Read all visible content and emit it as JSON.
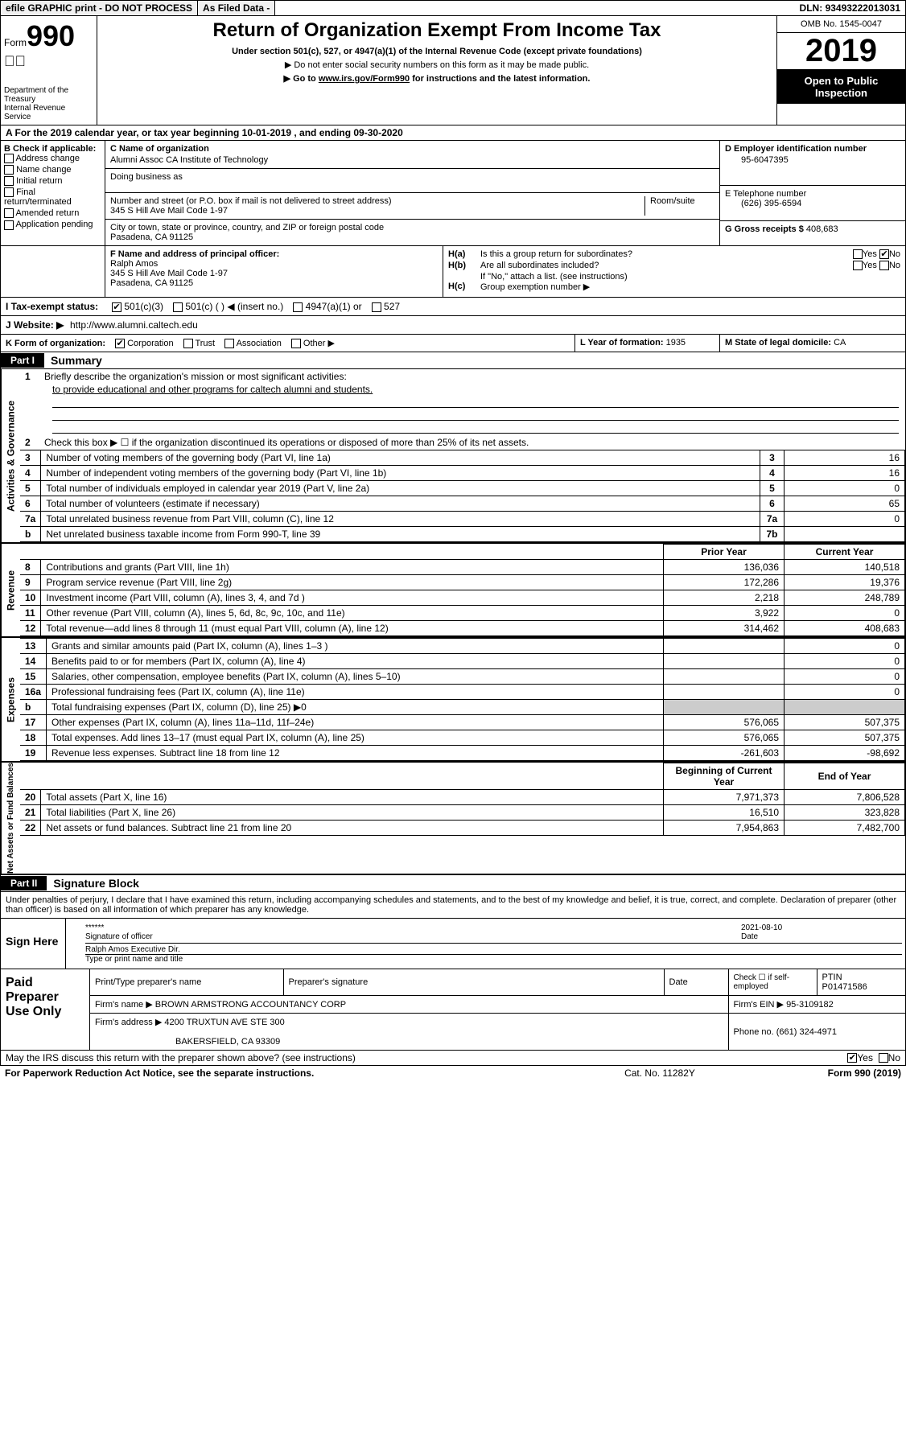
{
  "header_bar": {
    "efile": "efile GRAPHIC print - DO NOT PROCESS",
    "as_filed": "As Filed Data -",
    "dln_label": "DLN:",
    "dln": "93493222013031"
  },
  "form": {
    "form_label": "Form",
    "form_num": "990",
    "dept": "Department of the Treasury\nInternal Revenue Service",
    "title": "Return of Organization Exempt From Income Tax",
    "subtitle": "Under section 501(c), 527, or 4947(a)(1) of the Internal Revenue Code (except private foundations)",
    "note1": "▶ Do not enter social security numbers on this form as it may be made public.",
    "note2_pre": "▶ Go to ",
    "note2_link": "www.irs.gov/Form990",
    "note2_post": " for instructions and the latest information.",
    "omb": "OMB No. 1545-0047",
    "year": "2019",
    "open": "Open to Public Inspection"
  },
  "line_a": "A   For the 2019 calendar year, or tax year beginning 10-01-2019    , and ending 09-30-2020",
  "box_b": {
    "label": "B Check if applicable:",
    "opts": [
      "Address change",
      "Name change",
      "Initial return",
      "Final return/terminated",
      "Amended return",
      "Application pending"
    ]
  },
  "box_c": {
    "label": "C Name of organization",
    "name": "Alumni Assoc CA Institute of Technology",
    "dba_label": "Doing business as",
    "addr_label": "Number and street (or P.O. box if mail is not delivered to street address)",
    "room_label": "Room/suite",
    "addr": "345 S Hill Ave Mail Code 1-97",
    "city_label": "City or town, state or province, country, and ZIP or foreign postal code",
    "city": "Pasadena, CA  91125"
  },
  "box_d": {
    "label": "D Employer identification number",
    "val": "95-6047395"
  },
  "box_e": {
    "label": "E Telephone number",
    "val": "(626) 395-6594"
  },
  "box_g": {
    "label": "G Gross receipts $",
    "val": "408,683"
  },
  "box_f": {
    "label": "F   Name and address of principal officer:",
    "name": "Ralph Amos",
    "addr1": "345 S Hill Ave Mail Code 1-97",
    "addr2": "Pasadena, CA  91125"
  },
  "box_h": {
    "ha_label": "H(a)",
    "ha_text": "Is this a group return for subordinates?",
    "ha_yes": "Yes",
    "ha_no": "No",
    "ha_checked": "no",
    "hb_label": "H(b)",
    "hb_text": "Are all subordinates included?",
    "hb_yes": "Yes",
    "hb_no": "No",
    "hb_note": "If \"No,\" attach a list. (see instructions)",
    "hc_label": "H(c)",
    "hc_text": "Group exemption number ▶"
  },
  "line_i": {
    "label": "I   Tax-exempt status:",
    "opt1": "501(c)(3)",
    "opt1_checked": true,
    "opt2": "501(c) (  ) ◀ (insert no.)",
    "opt3": "4947(a)(1) or",
    "opt4": "527"
  },
  "line_j": {
    "label": "J   Website: ▶",
    "val": "http://www.alumni.caltech.edu"
  },
  "line_k": {
    "label": "K Form of organization:",
    "opt1": "Corporation",
    "opt1_checked": true,
    "opt2": "Trust",
    "opt3": "Association",
    "opt4": "Other ▶"
  },
  "line_l": {
    "label": "L Year of formation:",
    "val": "1935"
  },
  "line_m": {
    "label": "M State of legal domicile:",
    "val": "CA"
  },
  "part1": {
    "label": "Part I",
    "title": "Summary"
  },
  "gov": {
    "label": "Activities & Governance",
    "l1": "Briefly describe the organization's mission or most significant activities:",
    "l1_text": "to provide educational and other programs for caltech alumni and students.",
    "l2": "Check this box ▶ ☐ if the organization discontinued its operations or disposed of more than 25% of its net assets.",
    "rows": [
      {
        "n": "3",
        "t": "Number of voting members of the governing body (Part VI, line 1a)",
        "ref": "3",
        "v": "16"
      },
      {
        "n": "4",
        "t": "Number of independent voting members of the governing body (Part VI, line 1b)",
        "ref": "4",
        "v": "16"
      },
      {
        "n": "5",
        "t": "Total number of individuals employed in calendar year 2019 (Part V, line 2a)",
        "ref": "5",
        "v": "0"
      },
      {
        "n": "6",
        "t": "Total number of volunteers (estimate if necessary)",
        "ref": "6",
        "v": "65"
      },
      {
        "n": "7a",
        "t": "Total unrelated business revenue from Part VIII, column (C), line 12",
        "ref": "7a",
        "v": "0"
      },
      {
        "n": "b",
        "t": "Net unrelated business taxable income from Form 990-T, line 39",
        "ref": "7b",
        "v": ""
      }
    ]
  },
  "rev": {
    "label": "Revenue",
    "hdr_prior": "Prior Year",
    "hdr_curr": "Current Year",
    "rows": [
      {
        "n": "8",
        "t": "Contributions and grants (Part VIII, line 1h)",
        "p": "136,036",
        "c": "140,518"
      },
      {
        "n": "9",
        "t": "Program service revenue (Part VIII, line 2g)",
        "p": "172,286",
        "c": "19,376"
      },
      {
        "n": "10",
        "t": "Investment income (Part VIII, column (A), lines 3, 4, and 7d )",
        "p": "2,218",
        "c": "248,789"
      },
      {
        "n": "11",
        "t": "Other revenue (Part VIII, column (A), lines 5, 6d, 8c, 9c, 10c, and 11e)",
        "p": "3,922",
        "c": "0"
      },
      {
        "n": "12",
        "t": "Total revenue—add lines 8 through 11 (must equal Part VIII, column (A), line 12)",
        "p": "314,462",
        "c": "408,683"
      }
    ]
  },
  "exp": {
    "label": "Expenses",
    "rows": [
      {
        "n": "13",
        "t": "Grants and similar amounts paid (Part IX, column (A), lines 1–3 )",
        "p": "",
        "c": "0"
      },
      {
        "n": "14",
        "t": "Benefits paid to or for members (Part IX, column (A), line 4)",
        "p": "",
        "c": "0"
      },
      {
        "n": "15",
        "t": "Salaries, other compensation, employee benefits (Part IX, column (A), lines 5–10)",
        "p": "",
        "c": "0"
      },
      {
        "n": "16a",
        "t": "Professional fundraising fees (Part IX, column (A), line 11e)",
        "p": "",
        "c": "0"
      },
      {
        "n": "b",
        "t": "Total fundraising expenses (Part IX, column (D), line 25) ▶0",
        "p": "shade",
        "c": "shade"
      },
      {
        "n": "17",
        "t": "Other expenses (Part IX, column (A), lines 11a–11d, 11f–24e)",
        "p": "576,065",
        "c": "507,375"
      },
      {
        "n": "18",
        "t": "Total expenses. Add lines 13–17 (must equal Part IX, column (A), line 25)",
        "p": "576,065",
        "c": "507,375"
      },
      {
        "n": "19",
        "t": "Revenue less expenses. Subtract line 18 from line 12",
        "p": "-261,603",
        "c": "-98,692"
      }
    ]
  },
  "net": {
    "label": "Net Assets or Fund Balances",
    "hdr_beg": "Beginning of Current Year",
    "hdr_end": "End of Year",
    "rows": [
      {
        "n": "20",
        "t": "Total assets (Part X, line 16)",
        "p": "7,971,373",
        "c": "7,806,528"
      },
      {
        "n": "21",
        "t": "Total liabilities (Part X, line 26)",
        "p": "16,510",
        "c": "323,828"
      },
      {
        "n": "22",
        "t": "Net assets or fund balances. Subtract line 21 from line 20",
        "p": "7,954,863",
        "c": "7,482,700"
      }
    ]
  },
  "part2": {
    "label": "Part II",
    "title": "Signature Block"
  },
  "sig": {
    "perjury": "Under penalties of perjury, I declare that I have examined this return, including accompanying schedules and statements, and to the best of my knowledge and belief, it is true, correct, and complete. Declaration of preparer (other than officer) is based on all information of which preparer has any knowledge.",
    "sign_here": "Sign Here",
    "stars": "******",
    "sig_of_officer": "Signature of officer",
    "date": "2021-08-10",
    "date_label": "Date",
    "name_title": "Ralph Amos  Executive Dir.",
    "name_title_label": "Type or print name and title"
  },
  "paid": {
    "label": "Paid Preparer Use Only",
    "h1": "Print/Type preparer's name",
    "h2": "Preparer's signature",
    "h3": "Date",
    "h4_pre": "Check ☐ if self-employed",
    "h5_label": "PTIN",
    "h5": "P01471586",
    "firm_name_label": "Firm's name    ▶",
    "firm_name": "BROWN ARMSTRONG ACCOUNTANCY CORP",
    "firm_ein_label": "Firm's EIN ▶",
    "firm_ein": "95-3109182",
    "firm_addr_label": "Firm's address ▶",
    "firm_addr1": "4200 TRUXTUN AVE STE 300",
    "firm_addr2": "BAKERSFIELD, CA  93309",
    "phone_label": "Phone no.",
    "phone": "(661) 324-4971"
  },
  "footer": {
    "discuss": "May the IRS discuss this return with the preparer shown above? (see instructions)",
    "yes": "Yes",
    "no": "No",
    "paperwork": "For Paperwork Reduction Act Notice, see the separate instructions.",
    "cat": "Cat. No. 11282Y",
    "form": "Form 990 (2019)"
  }
}
